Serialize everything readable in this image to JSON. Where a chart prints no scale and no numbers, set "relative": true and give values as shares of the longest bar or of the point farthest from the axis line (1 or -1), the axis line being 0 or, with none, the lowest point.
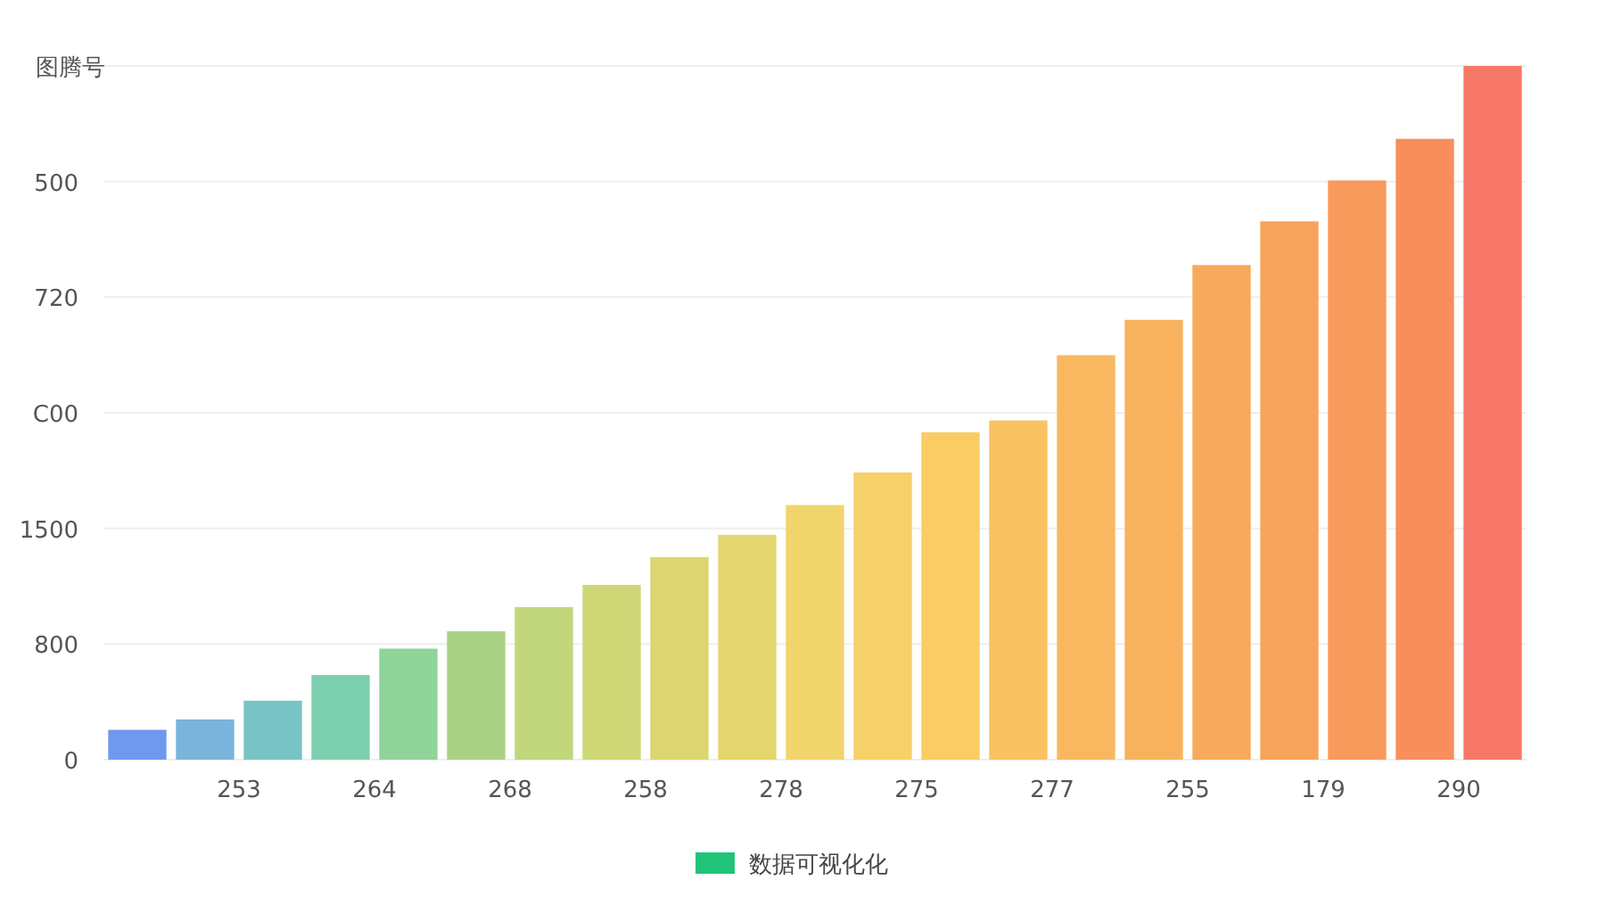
{
  "chart_data": {
    "type": "bar",
    "ylabel": "图腾号",
    "relative": true,
    "categories": [
      null,
      "253",
      null,
      "264",
      null,
      "268",
      null,
      "258",
      null,
      "278",
      null,
      "275",
      null,
      "277",
      null,
      "255",
      null,
      "179",
      null,
      "290",
      null
    ],
    "series": [
      {
        "name": "数据可视化化",
        "color": "#22c47a",
        "colors": [
          "#7099ee",
          "#7ab4dc",
          "#78c4c4",
          "#7ccfae",
          "#8fd49a",
          "#a9d184",
          "#c2d67c",
          "#cfd877",
          "#dcd672",
          "#e4d56e",
          "#f0d46c",
          "#f6d068",
          "#f9cc64",
          "#fbc262",
          "#f9b860",
          "#f8b25e",
          "#f7a95c",
          "#f7a35c",
          "#f89a5c",
          "#f88e5c",
          "#f87868"
        ],
        "values": [
          0.043,
          0.058,
          0.085,
          0.122,
          0.16,
          0.185,
          0.22,
          0.252,
          0.292,
          0.324,
          0.367,
          0.414,
          0.472,
          0.489,
          0.583,
          0.634,
          0.713,
          0.776,
          0.835,
          0.895,
          1
        ]
      }
    ],
    "annotations": [
      "0",
      "800",
      "1500",
      "C00",
      "720",
      "500"
    ],
    "grid": "y",
    "legend": "bottom"
  }
}
